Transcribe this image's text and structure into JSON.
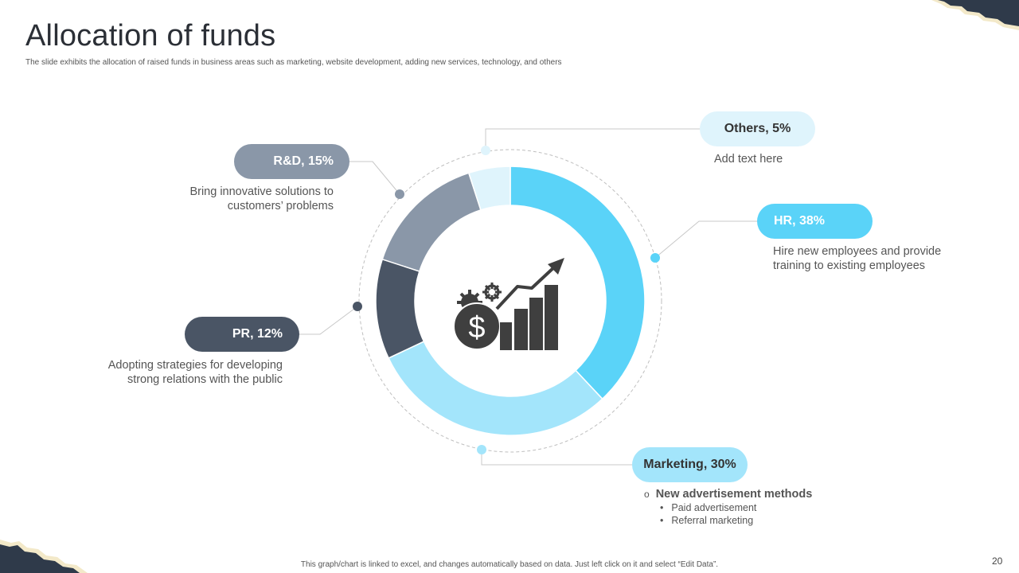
{
  "page": {
    "title": "Allocation of funds",
    "subtitle": "The slide exhibits the allocation of raised funds in business areas such as marketing, website development, adding new services, technology, and others",
    "footer": "This graph/chart is linked to excel, and changes automatically based on data. Just left click on it and select “Edit Data”.",
    "page_number": "20"
  },
  "chart_data": {
    "type": "pie",
    "title": "Allocation of funds",
    "variant": "donut",
    "slices": [
      {
        "name": "HR",
        "value": 38,
        "color": "#5ad3f8"
      },
      {
        "name": "Marketing",
        "value": 30,
        "color": "#a3e5fb"
      },
      {
        "name": "PR",
        "value": 12,
        "color": "#4a5565"
      },
      {
        "name": "R&D",
        "value": 15,
        "color": "#8a97a8"
      },
      {
        "name": "Others",
        "value": 5,
        "color": "#dff4fc"
      }
    ]
  },
  "callouts": {
    "others": {
      "label": "Others, 5%",
      "text": "Add text here"
    },
    "rnd": {
      "label": "R&D, 15%",
      "line1": "Bring innovative solutions to",
      "line2": "customers’ problems"
    },
    "hr": {
      "label": "HR, 38%",
      "line1": "Hire new employees and provide",
      "line2": "training to existing employees"
    },
    "pr": {
      "label": "PR, 12%",
      "line1": "Adopting strategies for developing",
      "line2": "strong relations with the public"
    },
    "marketing": {
      "label": "Marketing, 30%",
      "heading": "New advertisement methods",
      "bullet_symbol": "o",
      "sub_bullet_symbol": "•",
      "items": [
        "Paid advertisement",
        "Referral  marketing"
      ]
    }
  },
  "colors": {
    "dark": "#3f3f3f",
    "connector": "#c8c8c8",
    "deco_navy": "#2f3a4a",
    "deco_cream": "#f3e9c9"
  },
  "icons": {
    "center": "money-growth-icon"
  }
}
